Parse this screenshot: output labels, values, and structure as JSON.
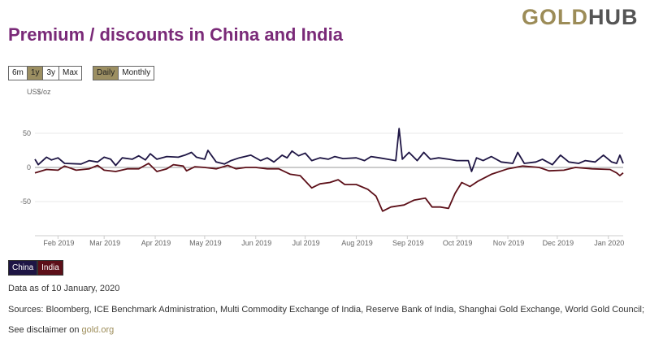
{
  "logo": {
    "part1": "GOLD",
    "part2": "HUB"
  },
  "title": "Premium / discounts in China and India",
  "range_buttons": [
    {
      "label": "6m",
      "active": false
    },
    {
      "label": "1y",
      "active": true
    },
    {
      "label": "3y",
      "active": false
    },
    {
      "label": "Max",
      "active": false
    }
  ],
  "freq_buttons": [
    {
      "label": "Daily",
      "active": true
    },
    {
      "label": "Monthly",
      "active": false
    }
  ],
  "colors": {
    "china": "#1e1544",
    "india": "#5c0f18",
    "accent": "#9c8f62",
    "title": "#7a2a78"
  },
  "chart_data": {
    "type": "line",
    "ylabel": "US$/oz",
    "ylim": [
      -100,
      70
    ],
    "yticks": [
      50,
      0,
      -50
    ],
    "xlim": [
      "2019-01-18",
      "2020-01-10"
    ],
    "xticks": [
      {
        "date": "2019-02-01",
        "label": "Feb 2019"
      },
      {
        "date": "2019-03-01",
        "label": "Mar 2019"
      },
      {
        "date": "2019-04-01",
        "label": "Apr 2019"
      },
      {
        "date": "2019-05-01",
        "label": "May 2019"
      },
      {
        "date": "2019-06-01",
        "label": "Jun 2019"
      },
      {
        "date": "2019-07-01",
        "label": "Jul 2019"
      },
      {
        "date": "2019-08-01",
        "label": "Aug 2019"
      },
      {
        "date": "2019-09-01",
        "label": "Sep 2019"
      },
      {
        "date": "2019-10-01",
        "label": "Oct 2019"
      },
      {
        "date": "2019-11-01",
        "label": "Nov 2019"
      },
      {
        "date": "2019-12-01",
        "label": "Dec 2019"
      },
      {
        "date": "2020-01-01",
        "label": "Jan 2020"
      }
    ],
    "grid": true,
    "legend": "bottom-left",
    "series": [
      {
        "name": "China",
        "points": [
          [
            "2019-01-18",
            12
          ],
          [
            "2019-01-20",
            4
          ],
          [
            "2019-01-25",
            15
          ],
          [
            "2019-01-28",
            11
          ],
          [
            "2019-02-01",
            14
          ],
          [
            "2019-02-05",
            6
          ],
          [
            "2019-02-15",
            5
          ],
          [
            "2019-02-20",
            10
          ],
          [
            "2019-02-25",
            8
          ],
          [
            "2019-03-01",
            15
          ],
          [
            "2019-03-05",
            12
          ],
          [
            "2019-03-08",
            3
          ],
          [
            "2019-03-12",
            14
          ],
          [
            "2019-03-18",
            12
          ],
          [
            "2019-03-22",
            17
          ],
          [
            "2019-03-26",
            11
          ],
          [
            "2019-03-29",
            20
          ],
          [
            "2019-04-02",
            12
          ],
          [
            "2019-04-08",
            16
          ],
          [
            "2019-04-15",
            15
          ],
          [
            "2019-04-19",
            18
          ],
          [
            "2019-04-23",
            22
          ],
          [
            "2019-04-26",
            15
          ],
          [
            "2019-05-01",
            12
          ],
          [
            "2019-05-03",
            25
          ],
          [
            "2019-05-08",
            8
          ],
          [
            "2019-05-13",
            5
          ],
          [
            "2019-05-17",
            10
          ],
          [
            "2019-05-22",
            14
          ],
          [
            "2019-05-29",
            18
          ],
          [
            "2019-06-04",
            10
          ],
          [
            "2019-06-08",
            14
          ],
          [
            "2019-06-12",
            8
          ],
          [
            "2019-06-17",
            18
          ],
          [
            "2019-06-20",
            14
          ],
          [
            "2019-06-23",
            24
          ],
          [
            "2019-06-27",
            17
          ],
          [
            "2019-07-01",
            21
          ],
          [
            "2019-07-05",
            10
          ],
          [
            "2019-07-10",
            14
          ],
          [
            "2019-07-15",
            12
          ],
          [
            "2019-07-19",
            16
          ],
          [
            "2019-07-24",
            13
          ],
          [
            "2019-08-01",
            14
          ],
          [
            "2019-08-06",
            10
          ],
          [
            "2019-08-10",
            16
          ],
          [
            "2019-08-15",
            14
          ],
          [
            "2019-08-20",
            12
          ],
          [
            "2019-08-25",
            10
          ],
          [
            "2019-08-27",
            57
          ],
          [
            "2019-08-29",
            12
          ],
          [
            "2019-09-02",
            22
          ],
          [
            "2019-09-07",
            10
          ],
          [
            "2019-09-11",
            22
          ],
          [
            "2019-09-15",
            12
          ],
          [
            "2019-09-20",
            14
          ],
          [
            "2019-09-26",
            12
          ],
          [
            "2019-10-01",
            10
          ],
          [
            "2019-10-08",
            10
          ],
          [
            "2019-10-10",
            -6
          ],
          [
            "2019-10-13",
            14
          ],
          [
            "2019-10-17",
            10
          ],
          [
            "2019-10-22",
            16
          ],
          [
            "2019-10-28",
            8
          ],
          [
            "2019-11-04",
            6
          ],
          [
            "2019-11-07",
            22
          ],
          [
            "2019-11-11",
            6
          ],
          [
            "2019-11-18",
            8
          ],
          [
            "2019-11-22",
            12
          ],
          [
            "2019-11-28",
            4
          ],
          [
            "2019-12-03",
            18
          ],
          [
            "2019-12-08",
            8
          ],
          [
            "2019-12-14",
            6
          ],
          [
            "2019-12-18",
            10
          ],
          [
            "2019-12-24",
            8
          ],
          [
            "2019-12-29",
            18
          ],
          [
            "2020-01-03",
            8
          ],
          [
            "2020-01-06",
            6
          ],
          [
            "2020-01-08",
            18
          ],
          [
            "2020-01-10",
            6
          ]
        ]
      },
      {
        "name": "India",
        "points": [
          [
            "2019-01-18",
            -8
          ],
          [
            "2019-01-25",
            -3
          ],
          [
            "2019-02-01",
            -4
          ],
          [
            "2019-02-05",
            2
          ],
          [
            "2019-02-12",
            -4
          ],
          [
            "2019-02-20",
            -2
          ],
          [
            "2019-02-25",
            3
          ],
          [
            "2019-03-01",
            -4
          ],
          [
            "2019-03-08",
            -6
          ],
          [
            "2019-03-15",
            -2
          ],
          [
            "2019-03-22",
            -2
          ],
          [
            "2019-03-28",
            6
          ],
          [
            "2019-04-02",
            -6
          ],
          [
            "2019-04-08",
            -2
          ],
          [
            "2019-04-12",
            4
          ],
          [
            "2019-04-18",
            2
          ],
          [
            "2019-04-20",
            -5
          ],
          [
            "2019-04-25",
            1
          ],
          [
            "2019-05-01",
            0
          ],
          [
            "2019-05-08",
            -2
          ],
          [
            "2019-05-15",
            3
          ],
          [
            "2019-05-20",
            -2
          ],
          [
            "2019-05-26",
            0
          ],
          [
            "2019-06-01",
            0
          ],
          [
            "2019-06-08",
            -2
          ],
          [
            "2019-06-15",
            -2
          ],
          [
            "2019-06-22",
            -10
          ],
          [
            "2019-06-28",
            -12
          ],
          [
            "2019-07-05",
            -30
          ],
          [
            "2019-07-10",
            -24
          ],
          [
            "2019-07-16",
            -22
          ],
          [
            "2019-07-21",
            -18
          ],
          [
            "2019-07-25",
            -25
          ],
          [
            "2019-08-01",
            -25
          ],
          [
            "2019-08-08",
            -32
          ],
          [
            "2019-08-13",
            -42
          ],
          [
            "2019-08-17",
            -64
          ],
          [
            "2019-08-22",
            -58
          ],
          [
            "2019-08-30",
            -55
          ],
          [
            "2019-09-05",
            -48
          ],
          [
            "2019-09-12",
            -45
          ],
          [
            "2019-09-16",
            -58
          ],
          [
            "2019-09-21",
            -58
          ],
          [
            "2019-09-26",
            -60
          ],
          [
            "2019-09-30",
            -38
          ],
          [
            "2019-10-04",
            -22
          ],
          [
            "2019-10-09",
            -28
          ],
          [
            "2019-10-14",
            -20
          ],
          [
            "2019-10-22",
            -10
          ],
          [
            "2019-11-01",
            -2
          ],
          [
            "2019-11-10",
            2
          ],
          [
            "2019-11-20",
            0
          ],
          [
            "2019-11-26",
            -5
          ],
          [
            "2019-12-05",
            -4
          ],
          [
            "2019-12-12",
            0
          ],
          [
            "2019-12-22",
            -2
          ],
          [
            "2020-01-02",
            -3
          ],
          [
            "2020-01-06",
            -8
          ],
          [
            "2020-01-08",
            -12
          ],
          [
            "2020-01-10",
            -8
          ]
        ]
      }
    ]
  },
  "footer": {
    "data_as_of": "Data as of 10 January, 2020",
    "sources": "Sources: Bloomberg, ICE Benchmark Administration, Multi Commodity Exchange of India, Reserve Bank of India, Shanghai Gold Exchange, World Gold Council;",
    "disclaimer_prefix": "See disclaimer on ",
    "disclaimer_link": "gold.org"
  }
}
